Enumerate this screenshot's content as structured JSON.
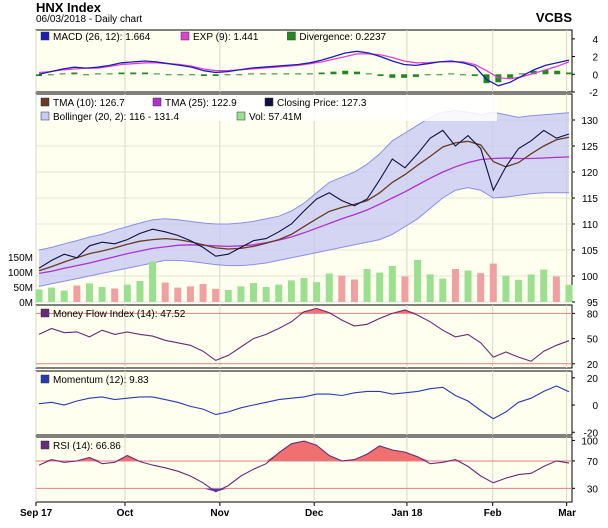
{
  "header": {
    "title": "HNX Index",
    "subtitle": "06/03/2018 - Daily chart",
    "brand": "VCBS"
  },
  "colors": {
    "plot_bg": "#fffff0",
    "macd": "#1c1cb8",
    "exp": "#e040d0",
    "divergence": "#1f8a1f",
    "tma10": "#6b3a22",
    "tma25": "#b030d0",
    "close": "#101040",
    "band_fill": "#c8caf2",
    "band_line": "#8a8ee8",
    "vol_up": "#9be08f",
    "vol_down": "#f0a0a0",
    "mfi_line": "#6a2a7a",
    "ref_line": "#e08080",
    "overfill": "#f07070",
    "underfill": "#4040e0",
    "momentum_line": "#2a3ab0",
    "rsi_line": "#6a2a7a"
  },
  "chart_data": [
    {
      "type": "bar",
      "panel": "MACD",
      "legend": [
        {
          "key": "macd",
          "text": "MACD (26, 12): 1.664"
        },
        {
          "key": "exp",
          "text": "EXP (9): 1.441"
        },
        {
          "key": "divergence",
          "text": "Divergence: 0.2237"
        }
      ],
      "ylim": [
        -2,
        5
      ],
      "yticks": [
        "4",
        "2",
        "0",
        "-2"
      ],
      "series": [
        {
          "key": "macd",
          "values": [
            0.0,
            0.3,
            0.6,
            0.8,
            0.7,
            0.8,
            1.0,
            1.3,
            1.4,
            1.5,
            1.4,
            1.2,
            1.0,
            0.8,
            0.4,
            0.2,
            0.3,
            0.5,
            0.7,
            0.8,
            0.9,
            1.0,
            1.1,
            1.3,
            1.6,
            2.0,
            2.4,
            2.6,
            2.4,
            2.0,
            1.5,
            1.1,
            1.0,
            1.2,
            1.4,
            1.5,
            1.3,
            0.9,
            -0.6,
            -1.3,
            -0.9,
            -0.2,
            0.5,
            1.0,
            1.3,
            1.6
          ]
        },
        {
          "key": "exp",
          "values": [
            0.2,
            0.3,
            0.5,
            0.6,
            0.7,
            0.7,
            0.9,
            1.1,
            1.2,
            1.3,
            1.3,
            1.2,
            1.1,
            0.9,
            0.6,
            0.4,
            0.4,
            0.5,
            0.6,
            0.7,
            0.8,
            0.9,
            1.0,
            1.2,
            1.4,
            1.7,
            2.0,
            2.3,
            2.3,
            2.2,
            1.9,
            1.5,
            1.3,
            1.3,
            1.4,
            1.4,
            1.4,
            1.1,
            0.4,
            -0.4,
            -0.5,
            -0.3,
            0.1,
            0.5,
            0.9,
            1.4
          ]
        },
        {
          "key": "divergence",
          "values": [
            -0.2,
            0.0,
            0.1,
            0.2,
            0.0,
            0.1,
            0.1,
            0.2,
            0.2,
            0.2,
            0.1,
            0.0,
            -0.1,
            -0.1,
            -0.2,
            -0.2,
            -0.1,
            0.0,
            0.1,
            0.1,
            0.1,
            0.1,
            0.1,
            0.1,
            0.2,
            0.3,
            0.4,
            0.3,
            0.1,
            -0.2,
            -0.4,
            -0.4,
            -0.3,
            -0.1,
            0.0,
            0.1,
            -0.1,
            -0.2,
            -1.0,
            -0.9,
            -0.4,
            0.1,
            0.4,
            0.5,
            0.4,
            0.2
          ]
        }
      ]
    },
    {
      "type": "line",
      "panel": "Price",
      "legend": [
        {
          "key": "tma10",
          "text": "TMA (10): 126.7"
        },
        {
          "key": "tma25",
          "text": "TMA (25): 122.9"
        },
        {
          "key": "close",
          "text": "Closing Price: 127.3"
        },
        {
          "key": "band",
          "text": "Bollinger (20, 2): 116 - 131.4"
        },
        {
          "key": "vol",
          "text": "Vol: 57.41M"
        }
      ],
      "ylim": [
        95,
        135
      ],
      "yticks": [
        "130",
        "125",
        "120",
        "115",
        "110",
        "105",
        "100",
        "95"
      ],
      "vol_ylim": [
        0,
        180
      ],
      "vol_ticks": [
        "150M",
        "100M",
        "50M",
        "0M"
      ],
      "close": [
        101.5,
        103.0,
        104.2,
        103.5,
        105.8,
        106.5,
        106.2,
        107.0,
        108.2,
        109.0,
        108.5,
        107.8,
        106.8,
        105.5,
        103.8,
        104.2,
        105.5,
        106.8,
        107.2,
        108.5,
        110.0,
        112.5,
        114.8,
        116.0,
        114.5,
        113.5,
        114.8,
        118.5,
        122.5,
        120.8,
        123.5,
        126.5,
        128.0,
        125.0,
        127.0,
        124.5,
        116.5,
        121.0,
        124.5,
        126.0,
        128.0,
        126.5,
        127.3
      ],
      "tma10": [
        101.0,
        101.8,
        102.7,
        103.5,
        104.3,
        104.8,
        105.4,
        106.1,
        106.7,
        107.0,
        107.2,
        107.0,
        106.6,
        106.0,
        105.4,
        105.2,
        105.3,
        105.7,
        106.3,
        107.0,
        108.0,
        109.5,
        111.0,
        112.4,
        113.2,
        113.8,
        114.5,
        116.0,
        118.0,
        119.5,
        121.3,
        123.0,
        124.8,
        125.6,
        125.9,
        125.2,
        122.0,
        121.0,
        121.8,
        123.5,
        125.0,
        126.2,
        126.7
      ],
      "tma25": [
        100.5,
        100.9,
        101.5,
        102.0,
        102.5,
        103.1,
        103.7,
        104.3,
        104.8,
        105.3,
        105.6,
        105.9,
        106.0,
        105.9,
        105.8,
        105.7,
        105.8,
        106.0,
        106.4,
        106.9,
        107.5,
        108.3,
        109.2,
        110.1,
        111.0,
        111.8,
        112.7,
        113.8,
        115.0,
        116.2,
        117.5,
        118.8,
        120.0,
        121.0,
        121.8,
        122.4,
        122.6,
        122.7,
        122.6,
        122.6,
        122.7,
        122.8,
        122.9
      ],
      "band_upper": [
        105.0,
        105.5,
        106.2,
        106.8,
        107.5,
        108.0,
        108.8,
        109.5,
        110.2,
        110.8,
        111.0,
        110.8,
        110.5,
        110.2,
        110.0,
        110.0,
        110.2,
        110.5,
        111.0,
        111.5,
        112.5,
        114.0,
        116.0,
        118.0,
        119.0,
        120.0,
        121.5,
        123.5,
        126.0,
        127.5,
        129.0,
        130.5,
        131.5,
        131.8,
        131.5,
        131.0,
        131.5,
        131.0,
        130.5,
        130.8,
        131.0,
        131.2,
        131.4
      ],
      "band_lower": [
        98.0,
        98.5,
        99.0,
        99.5,
        100.0,
        100.5,
        101.0,
        101.5,
        102.0,
        102.5,
        103.0,
        103.0,
        102.8,
        102.5,
        102.2,
        102.0,
        102.0,
        102.2,
        102.5,
        103.0,
        103.5,
        104.0,
        104.5,
        105.0,
        105.5,
        106.0,
        106.5,
        107.0,
        108.0,
        109.5,
        111.0,
        113.0,
        115.0,
        116.5,
        117.0,
        116.5,
        115.0,
        115.2,
        115.5,
        115.8,
        116.0,
        116.0,
        116.0
      ],
      "volume": [
        42,
        48,
        38,
        55,
        62,
        50,
        45,
        58,
        70,
        135,
        65,
        48,
        52,
        60,
        44,
        40,
        52,
        63,
        50,
        58,
        72,
        80,
        66,
        95,
        88,
        75,
        110,
        98,
        120,
        85,
        140,
        92,
        78,
        110,
        105,
        96,
        128,
        88,
        74,
        92,
        108,
        85,
        57
      ],
      "volume_up": [
        true,
        true,
        true,
        false,
        true,
        true,
        false,
        true,
        true,
        true,
        false,
        false,
        false,
        false,
        false,
        true,
        true,
        true,
        true,
        true,
        true,
        true,
        true,
        true,
        false,
        false,
        true,
        true,
        true,
        false,
        true,
        true,
        true,
        false,
        true,
        false,
        false,
        true,
        true,
        true,
        true,
        false,
        true
      ]
    },
    {
      "type": "line",
      "panel": "MFI",
      "legend": [
        {
          "key": "mfi_line",
          "text": "Money Flow Index (14): 47.52"
        }
      ],
      "ylim": [
        15,
        90
      ],
      "yticks": [
        "80",
        "50",
        "20"
      ],
      "ref_lines": [
        80,
        20
      ],
      "values": [
        55,
        62,
        57,
        58,
        52,
        60,
        55,
        58,
        55,
        53,
        48,
        45,
        42,
        35,
        24,
        30,
        40,
        50,
        55,
        62,
        70,
        82,
        86,
        81,
        72,
        65,
        67,
        74,
        80,
        84,
        78,
        70,
        60,
        52,
        55,
        45,
        28,
        34,
        28,
        23,
        35,
        42,
        47.52
      ]
    },
    {
      "type": "line",
      "panel": "Momentum",
      "legend": [
        {
          "key": "momentum_line",
          "text": "Momentum (12): 9.83"
        }
      ],
      "ylim": [
        -22,
        25
      ],
      "yticks": [
        "20",
        "0",
        "-20"
      ],
      "values": [
        1,
        2,
        0,
        3,
        5,
        6,
        4,
        5,
        6,
        6,
        4,
        2,
        -1,
        -3,
        -7,
        -5,
        -2,
        0,
        2,
        4,
        5,
        6,
        8,
        8,
        7,
        9,
        10,
        10,
        8,
        9,
        10,
        12,
        13,
        7,
        3,
        -4,
        -10,
        -5,
        2,
        5,
        10,
        14,
        9.83
      ]
    },
    {
      "type": "line",
      "panel": "RSI",
      "legend": [
        {
          "key": "rsi_line",
          "text": "RSI (14): 66.86"
        }
      ],
      "ylim": [
        10,
        105
      ],
      "yticks": [
        "100",
        "70",
        "30"
      ],
      "ref_lines": [
        70,
        30
      ],
      "values": [
        64,
        72,
        68,
        70,
        75,
        66,
        68,
        78,
        69,
        64,
        60,
        55,
        48,
        38,
        25,
        34,
        48,
        58,
        66,
        82,
        95,
        99,
        93,
        78,
        70,
        72,
        80,
        92,
        86,
        83,
        76,
        66,
        68,
        72,
        62,
        48,
        38,
        45,
        50,
        52,
        62,
        70,
        66.86
      ]
    }
  ],
  "x_axis": {
    "labels": [
      {
        "text": "Sep 17",
        "pos": 0.0
      },
      {
        "text": "Oct",
        "pos": 0.166
      },
      {
        "text": "Nov",
        "pos": 0.343
      },
      {
        "text": "Dec",
        "pos": 0.519
      },
      {
        "text": "Jan 18",
        "pos": 0.692
      },
      {
        "text": "Feb",
        "pos": 0.852
      },
      {
        "text": "Mar",
        "pos": 0.99
      }
    ]
  }
}
